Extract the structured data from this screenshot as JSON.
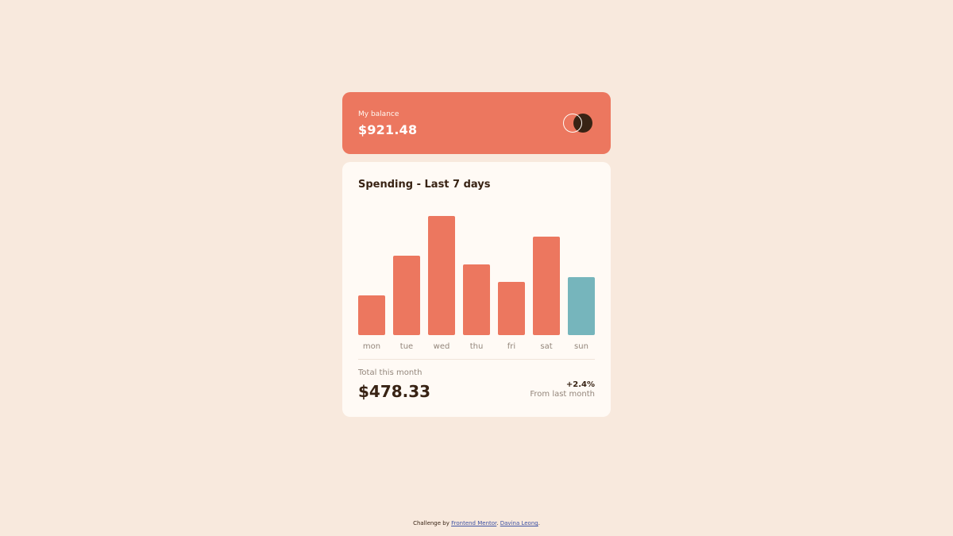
{
  "balance": {
    "label": "My balance",
    "amount": "$921.48",
    "logo_icon": "circles-logo-icon"
  },
  "spending": {
    "title": "Spending - Last 7 days",
    "total_label": "Total this month",
    "total_amount": "$478.33",
    "change_pct": "+2.4%",
    "change_label": "From last month"
  },
  "chart_data": {
    "type": "bar",
    "categories": [
      "mon",
      "tue",
      "wed",
      "thu",
      "fri",
      "sat",
      "sun"
    ],
    "values": [
      17.45,
      34.91,
      52.36,
      31.07,
      23.39,
      43.28,
      25.48
    ],
    "highlight_index": 6,
    "colors": {
      "bar": "#ec775f",
      "highlight": "#76b5bc",
      "label": "#93867b"
    },
    "title": "",
    "xlabel": "",
    "ylabel": ""
  },
  "attribution": {
    "prefix": "Challenge by ",
    "link1": "Frontend Mentor",
    "separator": ". ",
    "link2": "Davina Leong",
    "suffix": "."
  },
  "colors": {
    "page_bg": "#f8e9dd",
    "accent": "#ec775f",
    "card_bg": "#fffaf5",
    "dark_text": "#382314"
  }
}
